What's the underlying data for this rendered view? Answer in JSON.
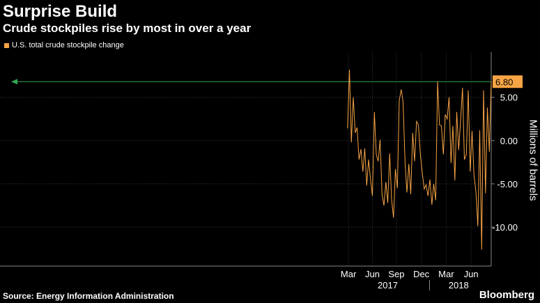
{
  "header": {
    "title": "Surprise Build",
    "subtitle": "Crude stockpiles rise by most in over a year"
  },
  "legend": {
    "label": "U.S. total crude stockpile change"
  },
  "footer": {
    "source": "Source: Energy Information Administration",
    "brand": "Bloomberg"
  },
  "colors": {
    "series": "#F7A445",
    "reference_line": "#2FA84F",
    "grid": "#3A3A3A",
    "background": "#000000"
  },
  "chart_data": {
    "type": "line",
    "title": "Surprise Build",
    "subtitle": "Crude stockpiles rise by most in over a year",
    "ylabel": "Millions of barrels",
    "ylim": [
      -14.5,
      10.2
    ],
    "yticks": [
      5,
      0,
      -5,
      -10
    ],
    "ytick_labels": [
      "5.00",
      "0.00",
      "-5.00",
      "-10.00"
    ],
    "month_ticks": [
      {
        "label": "Mar",
        "index": 0.5
      },
      {
        "label": "Jun",
        "index": 13
      },
      {
        "label": "Sep",
        "index": 25.5
      },
      {
        "label": "Dec",
        "index": 38.5
      },
      {
        "label": "Mar",
        "index": 51.5
      },
      {
        "label": "Jun",
        "index": 64.5
      }
    ],
    "year_labels": [
      {
        "label": "2017",
        "index": 21
      },
      {
        "label": "2018",
        "index": 58
      }
    ],
    "grid": true,
    "series": [
      {
        "name": "U.S. total crude stockpile change",
        "values": [
          1.4,
          8.2,
          -0.2,
          5.0,
          0.9,
          1.5,
          -2.2,
          -1.0,
          -3.6,
          -0.9,
          -5.2,
          -2.2,
          -4.5,
          -6.4,
          3.3,
          -1.6,
          -2.4,
          0.1,
          -6.2,
          -7.5,
          -4.8,
          -7.2,
          -1.5,
          -6.8,
          -8.9,
          -3.3,
          -5.5,
          4.6,
          5.9,
          4.5,
          -2.5,
          -6.0,
          -2.7,
          -6.2,
          0.9,
          -2.4,
          2.2,
          1.8,
          -1.6,
          -3.7,
          -5.6,
          -5.1,
          -6.4,
          -4.5,
          -7.4,
          -5.0,
          -6.9,
          6.8,
          1.8,
          1.7,
          -1.6,
          3.0,
          2.5,
          5.0,
          -2.6,
          1.7,
          -4.6,
          3.3,
          -1.1,
          2.3,
          6.1,
          -2.2,
          -1.6,
          5.8,
          -3.6,
          1.1,
          -4.0,
          -5.9,
          -9.9,
          1.2,
          -12.6,
          5.8,
          -6.1,
          3.8,
          -1.3,
          6.8
        ]
      }
    ],
    "reference_line": {
      "value": 6.8,
      "label": "6.80"
    }
  }
}
